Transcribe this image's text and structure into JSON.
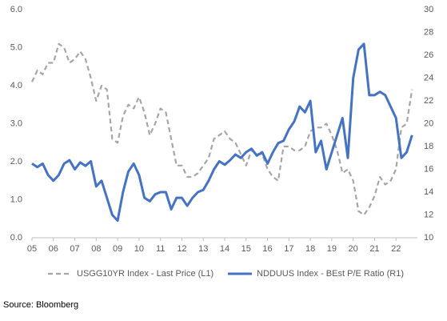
{
  "chart_data": {
    "type": "line",
    "x": [
      2005,
      2005.25,
      2005.5,
      2005.75,
      2006,
      2006.25,
      2006.5,
      2006.75,
      2007,
      2007.25,
      2007.5,
      2007.75,
      2008,
      2008.25,
      2008.5,
      2008.75,
      2009,
      2009.25,
      2009.5,
      2009.75,
      2010,
      2010.25,
      2010.5,
      2010.75,
      2011,
      2011.25,
      2011.5,
      2011.75,
      2012,
      2012.25,
      2012.5,
      2012.75,
      2013,
      2013.25,
      2013.5,
      2013.75,
      2014,
      2014.25,
      2014.5,
      2014.75,
      2015,
      2015.25,
      2015.5,
      2015.75,
      2016,
      2016.25,
      2016.5,
      2016.75,
      2017,
      2017.25,
      2017.5,
      2017.75,
      2018,
      2018.25,
      2018.5,
      2018.75,
      2019,
      2019.25,
      2019.5,
      2019.75,
      2020,
      2020.25,
      2020.5,
      2020.75,
      2021,
      2021.25,
      2021.5,
      2021.75,
      2022,
      2022.25,
      2022.5,
      2022.75
    ],
    "series": [
      {
        "name": "USGG10YR Index - Last Price (L1)",
        "color": "#a6a6a6",
        "dashed": true,
        "axis": "y",
        "values": [
          4.1,
          4.4,
          4.3,
          4.6,
          4.6,
          5.1,
          5.0,
          4.6,
          4.7,
          4.9,
          4.7,
          4.2,
          3.6,
          4.0,
          3.9,
          2.6,
          2.5,
          3.2,
          3.5,
          3.4,
          3.7,
          3.3,
          2.7,
          3.0,
          3.4,
          3.3,
          2.6,
          1.9,
          1.9,
          1.6,
          1.6,
          1.7,
          1.9,
          2.1,
          2.6,
          2.7,
          2.8,
          2.6,
          2.5,
          2.2,
          1.9,
          2.3,
          2.2,
          2.2,
          1.8,
          1.6,
          1.5,
          2.4,
          2.4,
          2.3,
          2.3,
          2.4,
          2.8,
          2.9,
          2.9,
          3.0,
          2.7,
          2.3,
          1.7,
          1.8,
          1.5,
          0.7,
          0.6,
          0.8,
          1.1,
          1.6,
          1.4,
          1.5,
          1.8,
          2.9,
          3.0,
          3.9
        ]
      },
      {
        "name": "NDDUUS Index - BEst P/E Ratio (R1)",
        "color": "#4472c4",
        "dashed": false,
        "axis": "y2",
        "values": [
          16.5,
          16.2,
          16.5,
          15.5,
          15.0,
          15.5,
          16.5,
          16.8,
          16.0,
          16.6,
          16.3,
          16.7,
          14.5,
          15.0,
          13.5,
          12.0,
          11.5,
          14.0,
          15.8,
          16.5,
          15.5,
          13.5,
          13.2,
          13.8,
          14.0,
          14.0,
          12.5,
          13.5,
          13.5,
          12.8,
          13.5,
          14.0,
          14.2,
          15.0,
          16.0,
          16.7,
          16.4,
          16.8,
          17.3,
          17.0,
          17.5,
          17.8,
          17.2,
          17.5,
          16.5,
          17.5,
          18.3,
          18.5,
          19.5,
          20.2,
          21.5,
          21.0,
          22.0,
          17.5,
          18.5,
          16.0,
          17.5,
          19.0,
          20.5,
          17.0,
          24.0,
          26.5,
          27.0,
          22.5,
          22.5,
          22.8,
          22.5,
          21.5,
          20.5,
          17.0,
          17.5,
          19.0
        ]
      }
    ],
    "xlim": [
      2005,
      2023
    ],
    "xticks": [
      {
        "value": 2005,
        "label": "05"
      },
      {
        "value": 2006,
        "label": "06"
      },
      {
        "value": 2007,
        "label": "07"
      },
      {
        "value": 2008,
        "label": "08"
      },
      {
        "value": 2009,
        "label": "09"
      },
      {
        "value": 2010,
        "label": "10"
      },
      {
        "value": 2011,
        "label": "11"
      },
      {
        "value": 2012,
        "label": "12"
      },
      {
        "value": 2013,
        "label": "13"
      },
      {
        "value": 2014,
        "label": "14"
      },
      {
        "value": 2015,
        "label": "15"
      },
      {
        "value": 2016,
        "label": "16"
      },
      {
        "value": 2017,
        "label": "17"
      },
      {
        "value": 2018,
        "label": "18"
      },
      {
        "value": 2019,
        "label": "19"
      },
      {
        "value": 2020,
        "label": "20"
      },
      {
        "value": 2021,
        "label": "21"
      },
      {
        "value": 2022,
        "label": "22"
      }
    ],
    "ylim": [
      0,
      6
    ],
    "yticks": [
      {
        "value": 0,
        "label": "0.0"
      },
      {
        "value": 1,
        "label": "1.0"
      },
      {
        "value": 2,
        "label": "2.0"
      },
      {
        "value": 3,
        "label": "3.0"
      },
      {
        "value": 4,
        "label": "4.0"
      },
      {
        "value": 5,
        "label": "5.0"
      },
      {
        "value": 6,
        "label": "6.0"
      }
    ],
    "y2lim": [
      10,
      30
    ],
    "y2ticks": [
      10,
      12,
      14,
      16,
      18,
      20,
      22,
      24,
      26,
      28,
      30
    ],
    "grid": false,
    "legend": "bottom",
    "source": "Source: Bloomberg"
  }
}
